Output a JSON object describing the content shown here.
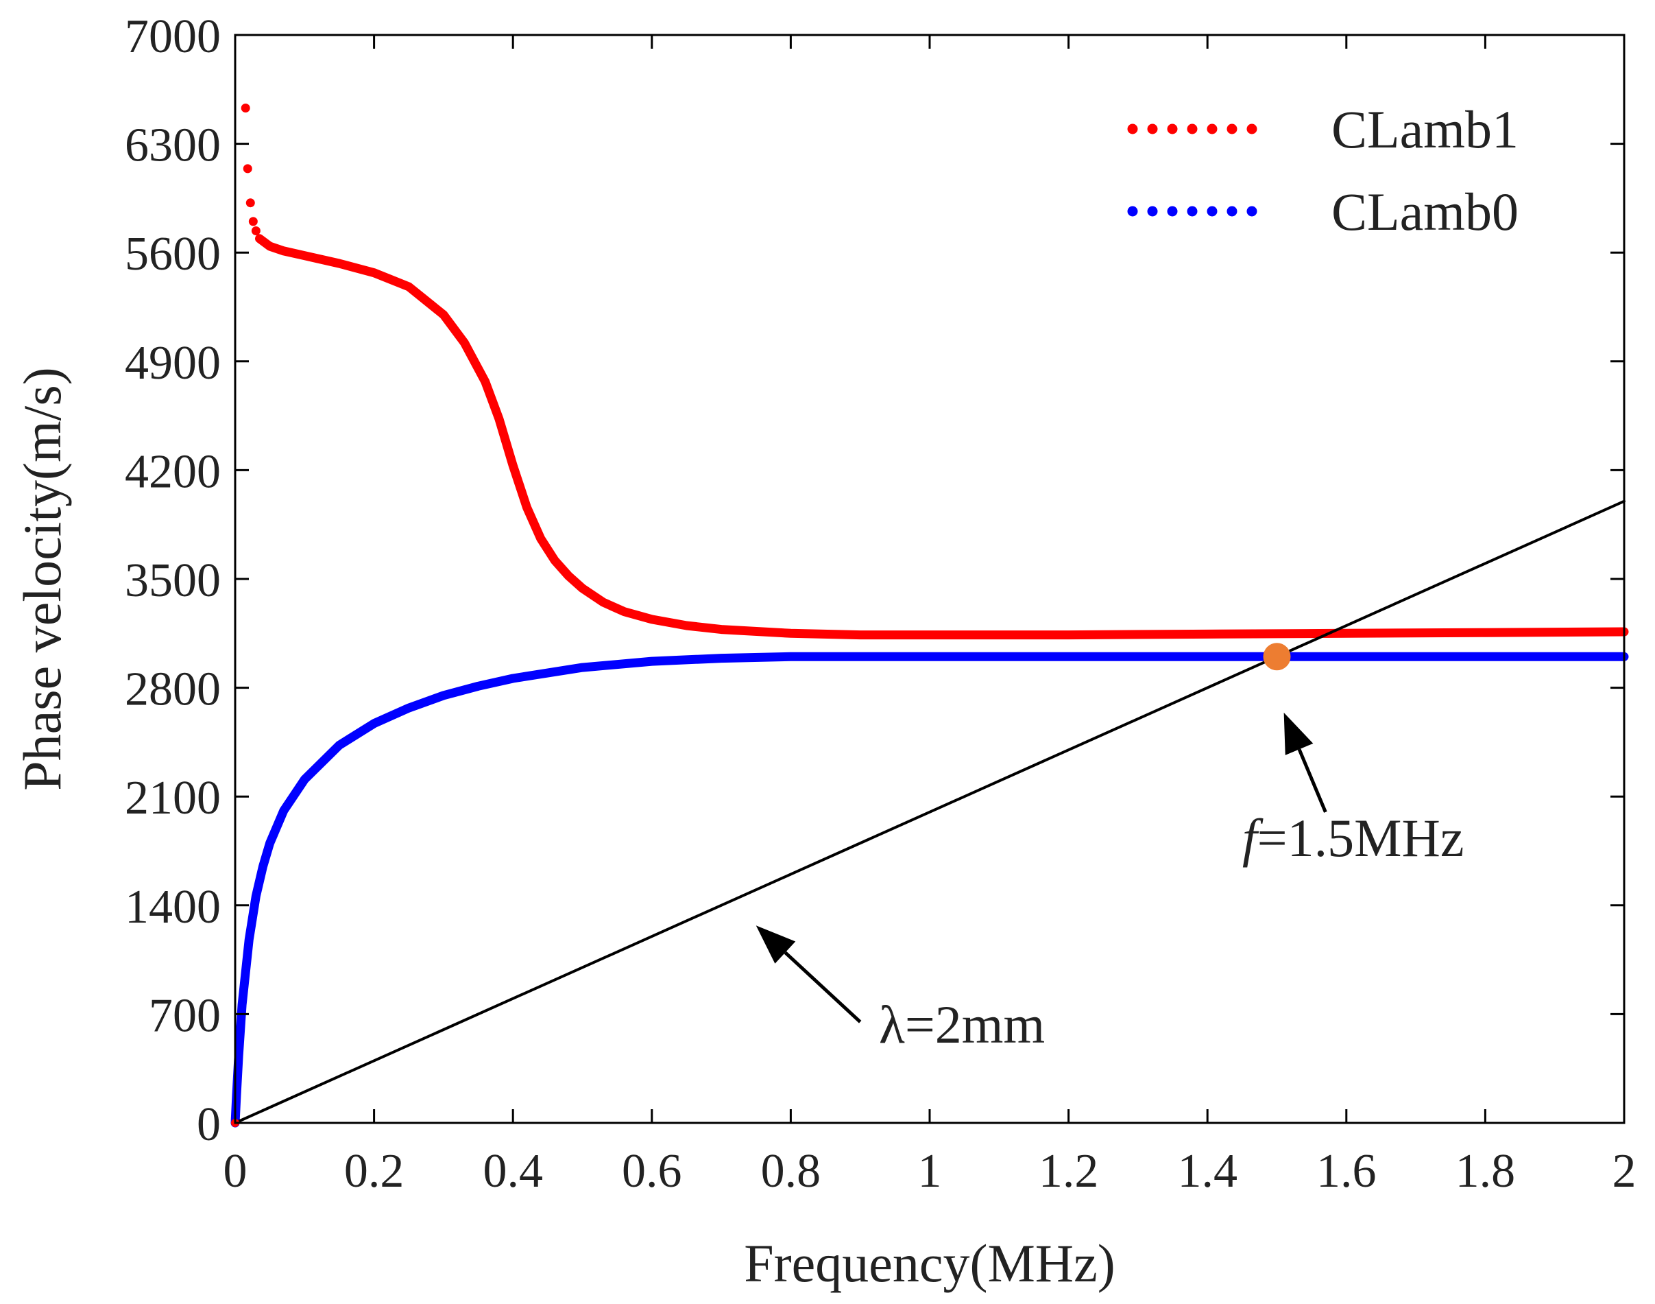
{
  "chart_data": {
    "type": "line",
    "title": "",
    "xlabel": "Frequency(MHz)",
    "ylabel": "Phase velocity(m/s)",
    "xlim": [
      0,
      2
    ],
    "ylim": [
      0,
      7000
    ],
    "x_ticks": [
      "0",
      "0.2",
      "0.4",
      "0.6",
      "0.8",
      "1",
      "1.2",
      "1.4",
      "1.6",
      "1.8",
      "2"
    ],
    "x_tick_values": [
      0,
      0.2,
      0.4,
      0.6,
      0.8,
      1.0,
      1.2,
      1.4,
      1.6,
      1.8,
      2.0
    ],
    "y_ticks": [
      "0",
      "700",
      "1400",
      "2100",
      "2800",
      "3500",
      "4200",
      "4900",
      "5600",
      "6300",
      "7000"
    ],
    "y_tick_values": [
      0,
      700,
      1400,
      2100,
      2800,
      3500,
      4200,
      4900,
      5600,
      6300,
      7000
    ],
    "grid": false,
    "legend_position": "top-right",
    "series": [
      {
        "name": "CLamb1",
        "color": "#ff0000",
        "style": "dotted",
        "sparse_points": [
          {
            "x": 0.015,
            "y": 6530
          },
          {
            "x": 0.018,
            "y": 6140
          },
          {
            "x": 0.022,
            "y": 5920
          },
          {
            "x": 0.026,
            "y": 5800
          },
          {
            "x": 0.03,
            "y": 5740
          }
        ],
        "x": [
          0.035,
          0.05,
          0.07,
          0.1,
          0.15,
          0.2,
          0.25,
          0.3,
          0.33,
          0.36,
          0.38,
          0.4,
          0.42,
          0.44,
          0.46,
          0.48,
          0.5,
          0.53,
          0.56,
          0.6,
          0.65,
          0.7,
          0.8,
          0.9,
          1.0,
          1.2,
          1.4,
          1.6,
          1.8,
          2.0
        ],
        "y": [
          5690,
          5640,
          5610,
          5580,
          5530,
          5470,
          5380,
          5200,
          5020,
          4770,
          4530,
          4230,
          3960,
          3760,
          3620,
          3520,
          3440,
          3350,
          3290,
          3240,
          3200,
          3175,
          3150,
          3140,
          3140,
          3140,
          3145,
          3150,
          3155,
          3160
        ]
      },
      {
        "name": "CLamb0",
        "color": "#0000ff",
        "style": "dotted",
        "x": [
          0.0,
          0.002,
          0.005,
          0.01,
          0.02,
          0.03,
          0.04,
          0.05,
          0.07,
          0.1,
          0.15,
          0.2,
          0.25,
          0.3,
          0.35,
          0.4,
          0.5,
          0.6,
          0.7,
          0.8,
          1.0,
          1.2,
          1.4,
          1.6,
          1.8,
          2.0
        ],
        "y": [
          0,
          180,
          430,
          760,
          1180,
          1460,
          1650,
          1800,
          2010,
          2210,
          2430,
          2570,
          2670,
          2750,
          2810,
          2860,
          2930,
          2970,
          2990,
          3000,
          3000,
          3000,
          3000,
          3000,
          3000,
          3000
        ]
      },
      {
        "name": "λ=2mm",
        "color": "#000000",
        "style": "solid",
        "x": [
          0,
          2
        ],
        "y": [
          0,
          4000
        ]
      }
    ],
    "marker": {
      "x": 1.5,
      "y": 3000,
      "color": "#ed7d31"
    },
    "annotations": [
      {
        "text": "λ=2mm",
        "arrow_from": [
          0.9,
          650
        ],
        "arrow_to": [
          0.75,
          1270
        ]
      },
      {
        "f_symbol": "f",
        "text": "=1.5MHz",
        "arrow_from": [
          1.57,
          2000
        ],
        "arrow_to": [
          1.51,
          2640
        ]
      }
    ],
    "legend": [
      {
        "label": "CLamb1",
        "color": "#ff0000"
      },
      {
        "label": "CLamb0",
        "color": "#0000ff"
      }
    ]
  }
}
